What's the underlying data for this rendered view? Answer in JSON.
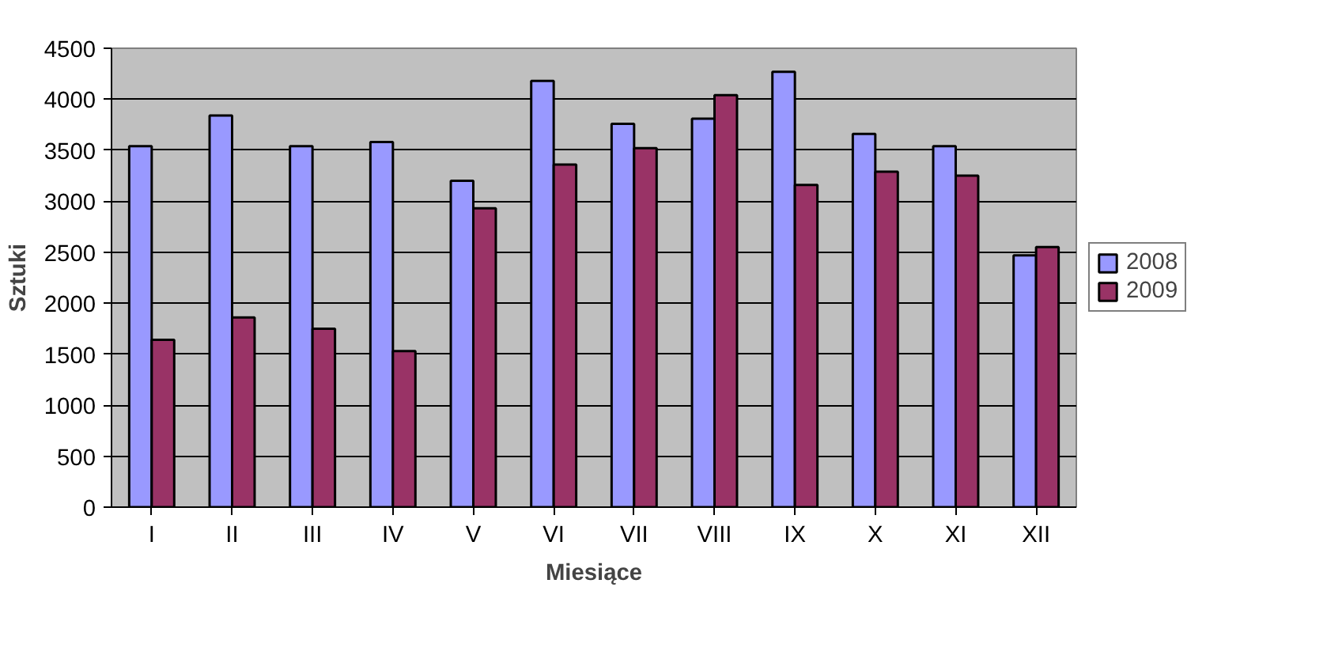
{
  "chart_data": {
    "type": "bar",
    "xlabel": "Miesiące",
    "ylabel": "Sztuki",
    "categories": [
      "I",
      "II",
      "III",
      "IV",
      "V",
      "VI",
      "VII",
      "VIII",
      "IX",
      "X",
      "XI",
      "XII"
    ],
    "series": [
      {
        "name": "2008",
        "color": "#9999ff",
        "values": [
          3540,
          3840,
          3540,
          3580,
          3200,
          4180,
          3760,
          3810,
          4270,
          3660,
          3540,
          2470
        ]
      },
      {
        "name": "2009",
        "color": "#993366",
        "values": [
          1640,
          1860,
          1750,
          1530,
          2930,
          3360,
          3520,
          4040,
          3160,
          3290,
          3250,
          2550
        ]
      }
    ],
    "ylim": [
      0,
      4500
    ],
    "yticks": [
      0,
      500,
      1000,
      1500,
      2000,
      2500,
      3000,
      3500,
      4000,
      4500
    ],
    "grid": "y",
    "legend": "right"
  }
}
